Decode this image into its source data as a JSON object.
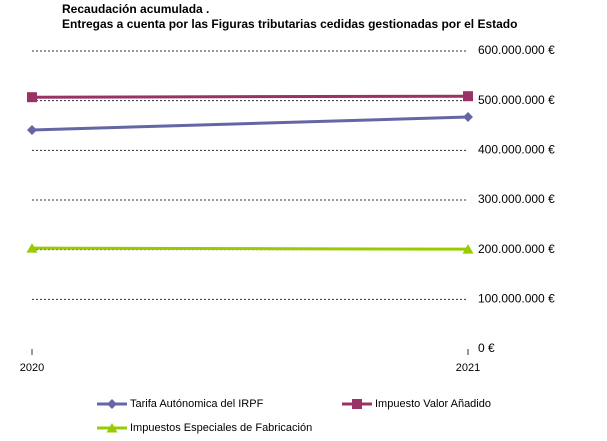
{
  "chart_data": {
    "type": "line",
    "title": "Recaudación acumulada .",
    "subtitle": "Entregas a cuenta por las Figuras tributarias cedidas gestionadas por el Estado",
    "categories": [
      "2020",
      "2021"
    ],
    "series": [
      {
        "name": "Tarifa Autónomica del IRPF",
        "color": "#6666a6",
        "marker": "diamond",
        "values": [
          441000000,
          467000000
        ]
      },
      {
        "name": "Impuesto Valor Añadido",
        "color": "#993366",
        "marker": "square",
        "values": [
          507000000,
          509000000
        ]
      },
      {
        "name": "Impuestos Especiales de Fabricación",
        "color": "#99cc00",
        "marker": "triangle",
        "values": [
          203000000,
          201000000
        ]
      }
    ],
    "ylim": [
      0,
      600000000
    ],
    "yticks": [
      {
        "value": 0,
        "label": "0 €"
      },
      {
        "value": 100000000,
        "label": "100.000.000 €"
      },
      {
        "value": 200000000,
        "label": "200.000.000 €"
      },
      {
        "value": 300000000,
        "label": "300.000.000 €"
      },
      {
        "value": 400000000,
        "label": "400.000.000 €"
      },
      {
        "value": 500000000,
        "label": "500.000.000 €"
      },
      {
        "value": 600000000,
        "label": "600.000.000 €"
      }
    ],
    "grid": true
  }
}
